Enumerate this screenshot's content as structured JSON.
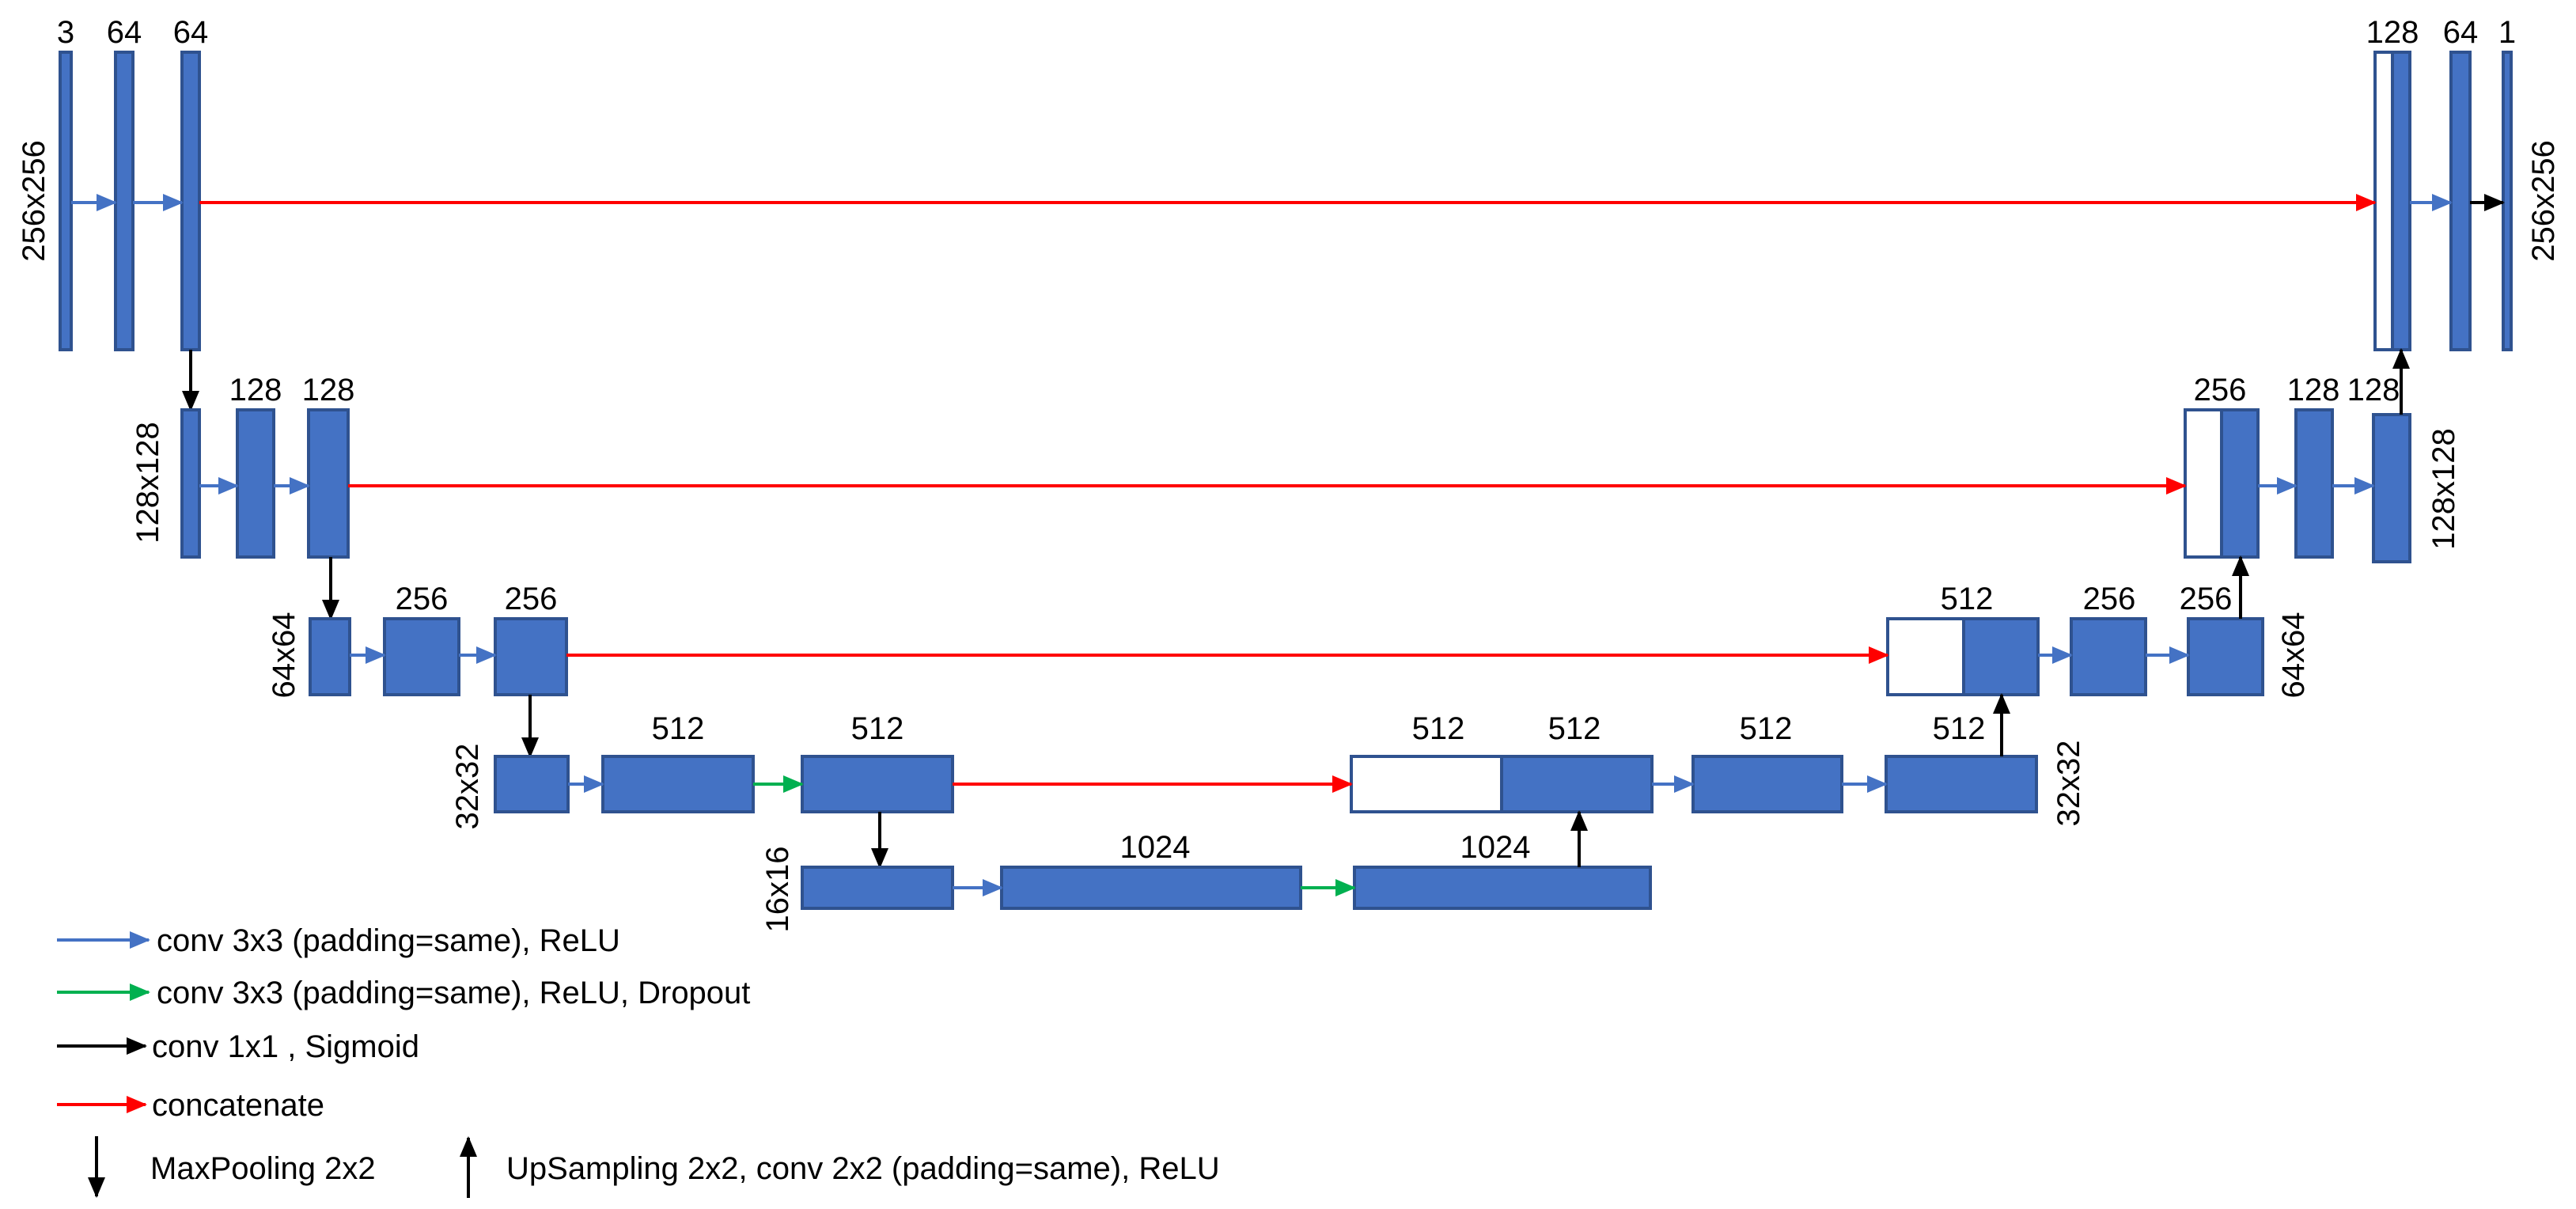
{
  "colors": {
    "block": "#4472C4",
    "block_stroke": "#2F528F",
    "conv": "#4472C4",
    "dropout": "#00B050",
    "output": "#000000",
    "concat": "#FF0000"
  },
  "channels": {
    "in": "3",
    "e1a": "64",
    "e1b": "64",
    "e2a": "128",
    "e2b": "128",
    "e3a": "256",
    "e3b": "256",
    "e4a": "512",
    "e4b": "512",
    "b1": "1024",
    "b2": "1024",
    "d4cat1": "512",
    "d4cat2": "512",
    "d4a": "512",
    "d4b": "512",
    "d3cat": "512",
    "d3a": "256",
    "d3b": "256",
    "d2cat": "256",
    "d2a": "128",
    "d2b": "128",
    "d1cat": "128",
    "d1a": "64",
    "out": "1"
  },
  "sizes": {
    "l1_left": "256x256",
    "l1_right": "256x256",
    "l2_left": "128x128",
    "l2_right": "128x128",
    "l3_left": "64x64",
    "l3_right": "64x64",
    "l4_left": "32x32",
    "l4_right": "32x32",
    "l5_left": "16x16"
  },
  "legend": {
    "conv": "conv 3x3 (padding=same), ReLU",
    "dropout": "conv 3x3 (padding=same), ReLU, Dropout",
    "output": "conv 1x1 , Sigmoid",
    "concat": "concatenate",
    "maxpool": "MaxPooling 2x2",
    "upsample": "UpSampling 2x2, conv 2x2 (padding=same), ReLU"
  }
}
